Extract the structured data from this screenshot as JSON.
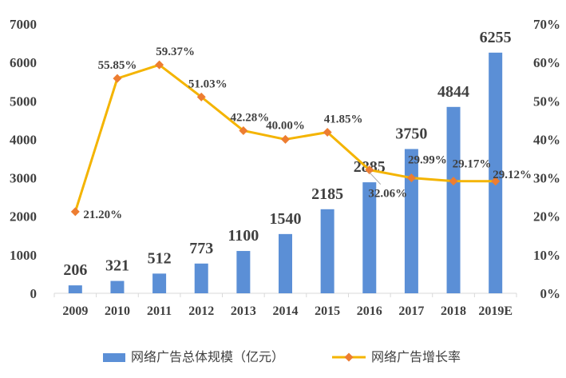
{
  "chart_data": {
    "type": "bar",
    "categories": [
      "2009",
      "2010",
      "2011",
      "2012",
      "2013",
      "2014",
      "2015",
      "2016",
      "2017",
      "2018",
      "2019E"
    ],
    "series": [
      {
        "name": "网络广告总体规模（亿元）",
        "type": "bar",
        "axis": "left",
        "color": "#5B8FD6",
        "values": [
          206,
          321,
          512,
          773,
          1100,
          1540,
          2185,
          2885,
          3750,
          4844,
          6255
        ],
        "labels": [
          "206",
          "321",
          "512",
          "773",
          "1100",
          "1540",
          "2185",
          "2885",
          "3750",
          "4844",
          "6255"
        ]
      },
      {
        "name": "网络广告增长率",
        "type": "line",
        "axis": "right",
        "color": "#F4B400",
        "marker_color": "#ED7D31",
        "values": [
          21.2,
          55.85,
          59.37,
          51.03,
          42.28,
          40.0,
          41.85,
          32.06,
          29.99,
          29.17,
          29.12
        ],
        "labels": [
          "21.20%",
          "55.85%",
          "59.37%",
          "51.03%",
          "42.28%",
          "40.00%",
          "41.85%",
          "32.06%",
          "29.99%",
          "29.17%",
          "29.12%"
        ]
      }
    ],
    "y_left": {
      "ylim": [
        0,
        7000
      ],
      "ticks": [
        "0",
        "1000",
        "2000",
        "3000",
        "4000",
        "5000",
        "6000",
        "7000"
      ]
    },
    "y_right": {
      "ylim": [
        0,
        70
      ],
      "ticks": [
        "0%",
        "10%",
        "20%",
        "30%",
        "40%",
        "50%",
        "60%",
        "70%"
      ]
    },
    "grid": false,
    "legend_position": "bottom"
  }
}
